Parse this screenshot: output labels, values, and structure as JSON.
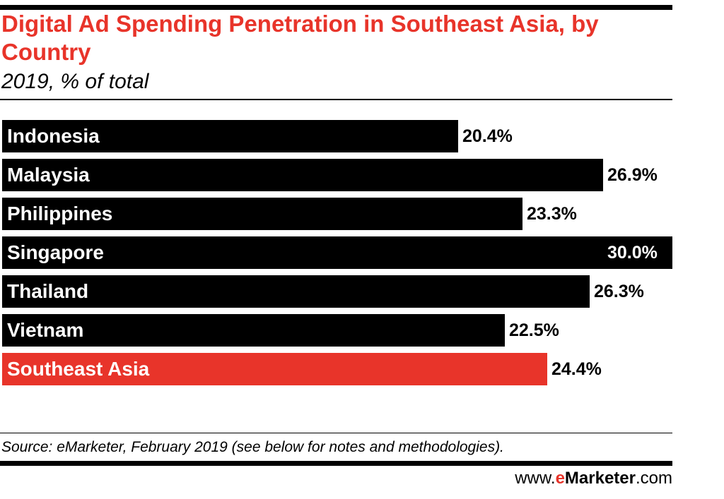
{
  "header": {
    "title": "Digital Ad Spending Penetration in Southeast Asia, by Country",
    "subtitle": "2019, % of total"
  },
  "footer": {
    "source": "Source: eMarketer, February 2019 (see below for notes and methodologies).",
    "brand_prefix": "www.",
    "brand_e": "e",
    "brand_name": "Marketer",
    "brand_suffix": ".com"
  },
  "colors": {
    "bar_default": "#000000",
    "bar_highlight": "#e8342a",
    "accent": "#e8342a"
  },
  "chart_data": {
    "type": "bar",
    "orientation": "horizontal",
    "title": "Digital Ad Spending Penetration in Southeast Asia, by Country",
    "subtitle": "2019, % of total",
    "categories": [
      "Indonesia",
      "Malaysia",
      "Philippines",
      "Singapore",
      "Thailand",
      "Vietnam",
      "Southeast Asia"
    ],
    "values": [
      20.4,
      26.9,
      23.3,
      30.0,
      26.3,
      22.5,
      24.4
    ],
    "value_labels": [
      "20.4%",
      "26.9%",
      "23.3%",
      "30.0%",
      "26.3%",
      "22.5%",
      "24.4%"
    ],
    "highlight": "Southeast Asia",
    "xlim": [
      0,
      30
    ],
    "grid": false,
    "legend": "none"
  }
}
